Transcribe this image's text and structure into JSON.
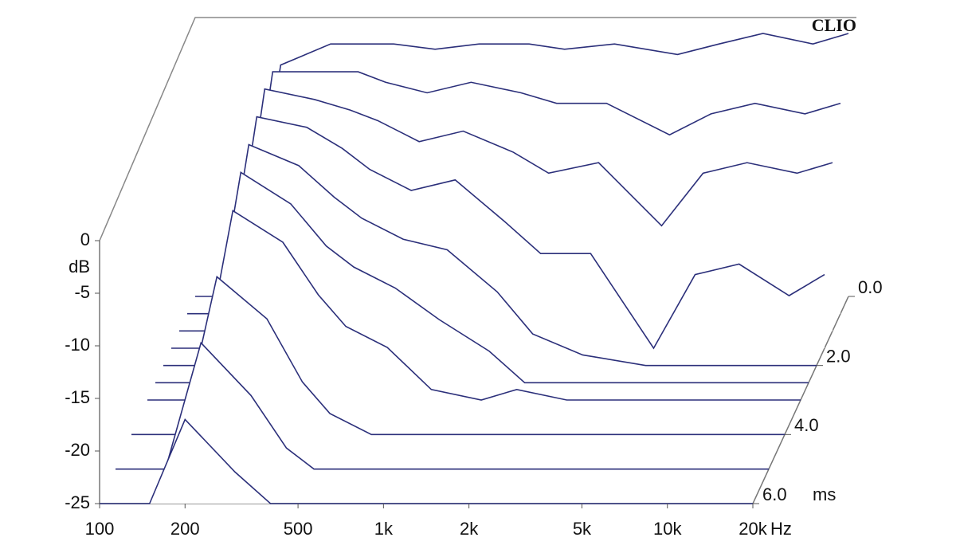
{
  "chart_data": {
    "type": "waterfall",
    "title": "CLIO",
    "x": [
      100,
      150,
      200,
      300,
      400,
      500,
      700,
      1000,
      1500,
      2000,
      3000,
      5000,
      7000,
      10000,
      15000,
      20000
    ],
    "z": [
      0,
      0.5,
      1,
      1.5,
      2,
      2.5,
      3,
      4,
      5,
      6
    ],
    "color": "#2b2f7a",
    "series": [
      {
        "values": [
          -25,
          -25,
          -3,
          -1,
          -1,
          -1,
          -1.5,
          -1,
          -1,
          -1.5,
          -1,
          -2,
          -1,
          0,
          -1,
          0
        ]
      },
      {
        "values": [
          -25,
          -25,
          -2,
          -2,
          -2,
          -3,
          -4,
          -3,
          -4,
          -5,
          -5,
          -8,
          -6,
          -5,
          -6,
          -5
        ]
      },
      {
        "values": [
          -25,
          -25,
          -2,
          -3,
          -4,
          -5,
          -7,
          -6,
          -8,
          -10,
          -9,
          -15,
          -10,
          -9,
          -10,
          -9
        ]
      },
      {
        "values": [
          -25,
          -25,
          -3,
          -4,
          -6,
          -8,
          -10,
          -9,
          -13,
          -16,
          -16,
          -25,
          -18,
          -17,
          -20,
          -18
        ]
      },
      {
        "values": [
          -25,
          -25,
          -4,
          -6,
          -9,
          -11,
          -13,
          -14,
          -18,
          -22,
          -24,
          -25,
          -25,
          -25,
          -25,
          -25
        ]
      },
      {
        "values": [
          -25,
          -25,
          -5,
          -8,
          -12,
          -14,
          -16,
          -19,
          -22,
          -25,
          -25,
          -25,
          -25,
          -25,
          -25,
          -25
        ]
      },
      {
        "values": [
          -25,
          -25,
          -7,
          -10,
          -15,
          -18,
          -20,
          -24,
          -25,
          -24,
          -25,
          -25,
          -25,
          -25,
          -25,
          -25
        ]
      },
      {
        "values": [
          -25,
          -25,
          -10,
          -14,
          -20,
          -23,
          -25,
          -25,
          -25,
          -25,
          -25,
          -25,
          -25,
          -25,
          -25,
          -25
        ]
      },
      {
        "values": [
          -25,
          -25,
          -13,
          -18,
          -23,
          -25,
          -25,
          -25,
          -25,
          -25,
          -25,
          -25,
          -25,
          -25,
          -25,
          -25
        ]
      },
      {
        "values": [
          -25,
          -25,
          -17,
          -22,
          -25,
          -25,
          -25,
          -25,
          -25,
          -25,
          -25,
          -25,
          -25,
          -25,
          -25,
          -25
        ]
      }
    ],
    "xlim": [
      100,
      20000
    ],
    "log_x": true,
    "xticks": [
      100,
      200,
      500,
      {
        "value": 1000,
        "label": "1k"
      },
      {
        "value": 2000,
        "label": "2k"
      },
      {
        "value": 5000,
        "label": "5k"
      },
      {
        "value": 10000,
        "label": "10k"
      },
      {
        "value": 20000,
        "label": "20k"
      }
    ],
    "x_label": "Hz",
    "ylim": [
      -25,
      0
    ],
    "yticks": [
      0,
      -5,
      -10,
      -15,
      -20,
      -25
    ],
    "y_label": "dB",
    "zlim": [
      0,
      6
    ],
    "zticks": [
      {
        "value": 0,
        "label": "0.0"
      },
      {
        "value": 2,
        "label": "2.0"
      },
      {
        "value": 4,
        "label": "4.0"
      },
      {
        "value": 6,
        "label": "6.0"
      }
    ],
    "z_label": "ms"
  }
}
